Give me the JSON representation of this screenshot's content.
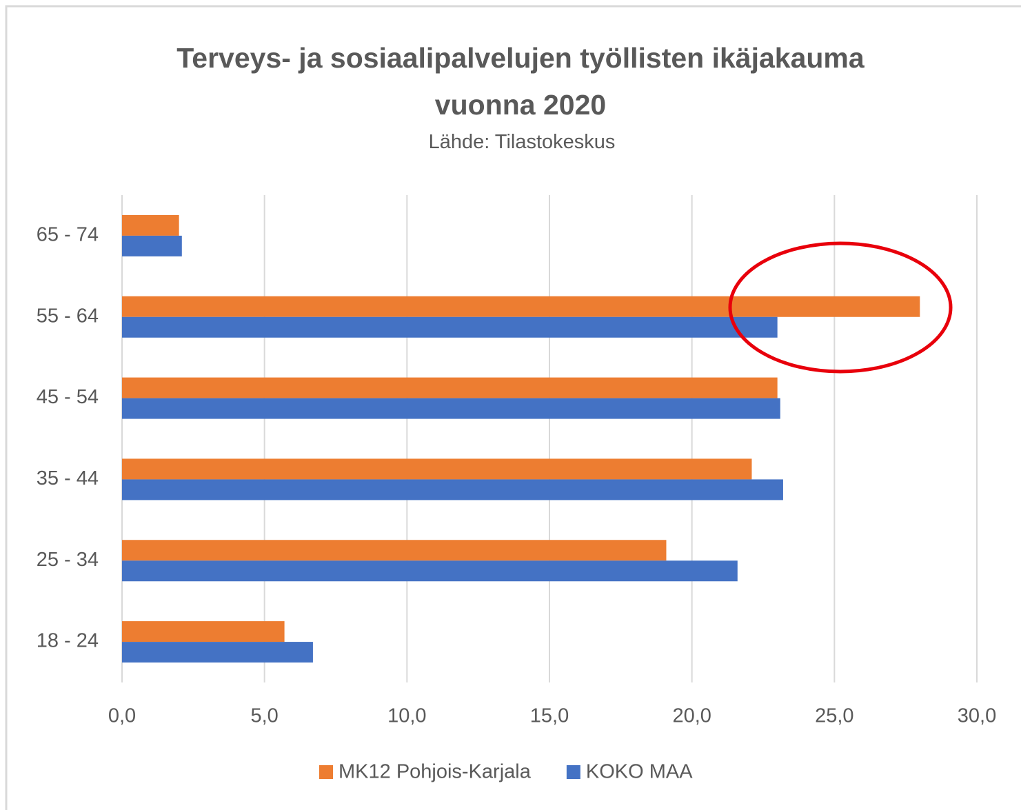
{
  "chart_data": {
    "type": "hbar",
    "title": "Terveys- ja sosiaalipalvelujen työllisten ikäjakauma vuonna 2020",
    "subtitle": "Lähde: Tilastokeskus",
    "categories": [
      "65 - 74",
      "55 - 64",
      "45 - 54",
      "35 - 44",
      "25 - 34",
      "18 - 24"
    ],
    "series": [
      {
        "name": "MK12 Pohjois-Karjala",
        "color": "#ed7d31",
        "values": [
          2.0,
          28.0,
          23.0,
          22.1,
          19.1,
          5.7
        ]
      },
      {
        "name": "KOKO MAA",
        "color": "#4472c4",
        "values": [
          2.1,
          23.0,
          23.1,
          23.2,
          21.6,
          6.7
        ]
      }
    ],
    "xlim": [
      0,
      30
    ],
    "xticks": [
      {
        "value": 0,
        "label": "0,0"
      },
      {
        "value": 5,
        "label": "5,0"
      },
      {
        "value": 10,
        "label": "10,0"
      },
      {
        "value": 15,
        "label": "15,0"
      },
      {
        "value": 20,
        "label": "20,0"
      },
      {
        "value": 25,
        "label": "25,0"
      },
      {
        "value": 30,
        "label": "30,0"
      }
    ],
    "grid": true,
    "legend": "bottom"
  }
}
